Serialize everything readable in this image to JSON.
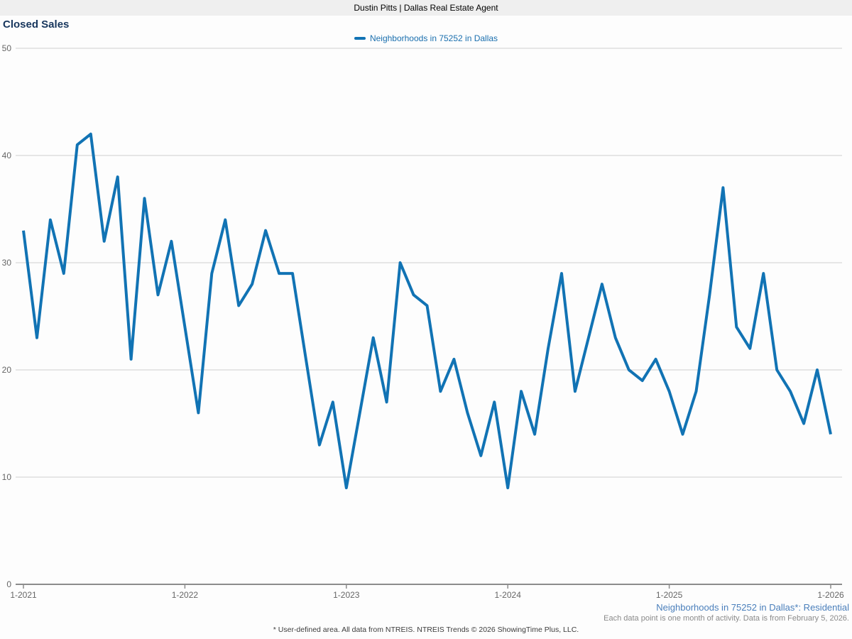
{
  "header": {
    "title": "Dustin Pitts | Dallas Real Estate Agent"
  },
  "title": "Closed Sales",
  "legend": {
    "label": "Neighborhoods in 75252 in Dallas"
  },
  "notes": {
    "series": "Neighborhoods in 75252 in Dallas*: Residential",
    "period": "Each data point is one month of activity. Data is from February 5, 2026.",
    "disclaimer": "* User-defined area. All data from NTREIS. NTREIS Trends © 2026 ShowingTime Plus, LLC."
  },
  "colors": {
    "line": "#1173b4",
    "legend_text": "#1a6fae",
    "title_text": "#17365d",
    "note_blue": "#4a7fbb",
    "note_gray": "#8a8a8a",
    "axis_label": "#666666",
    "gridline": "#cfcfcf",
    "axis_line": "#8c8c8c",
    "header_bg": "#efefef"
  },
  "chart_data": {
    "type": "line",
    "title": "Closed Sales",
    "x_unit": "month",
    "x_start_label": "1-2021",
    "x_end_label": "1-2026",
    "x_tick_labels": [
      "1-2021",
      "1-2022",
      "1-2023",
      "1-2024",
      "1-2025",
      "1-2026"
    ],
    "months_per_x_tick": 12,
    "y_ticks": [
      0,
      10,
      20,
      30,
      40,
      50
    ],
    "ylim": [
      0,
      50
    ],
    "grid": true,
    "legend_position": "top-center",
    "series": [
      {
        "name": "Neighborhoods in 75252 in Dallas",
        "values": [
          33,
          23,
          34,
          29,
          41,
          42,
          32,
          38,
          21,
          36,
          27,
          32,
          24,
          16,
          29,
          34,
          26,
          28,
          33,
          29,
          29,
          21,
          13,
          17,
          9,
          16,
          23,
          17,
          30,
          27,
          26,
          18,
          21,
          16,
          12,
          17,
          9,
          18,
          14,
          22,
          29,
          18,
          23,
          28,
          23,
          20,
          19,
          21,
          18,
          14,
          18,
          27,
          37,
          24,
          22,
          29,
          20,
          18,
          15,
          20,
          14
        ]
      }
    ]
  }
}
